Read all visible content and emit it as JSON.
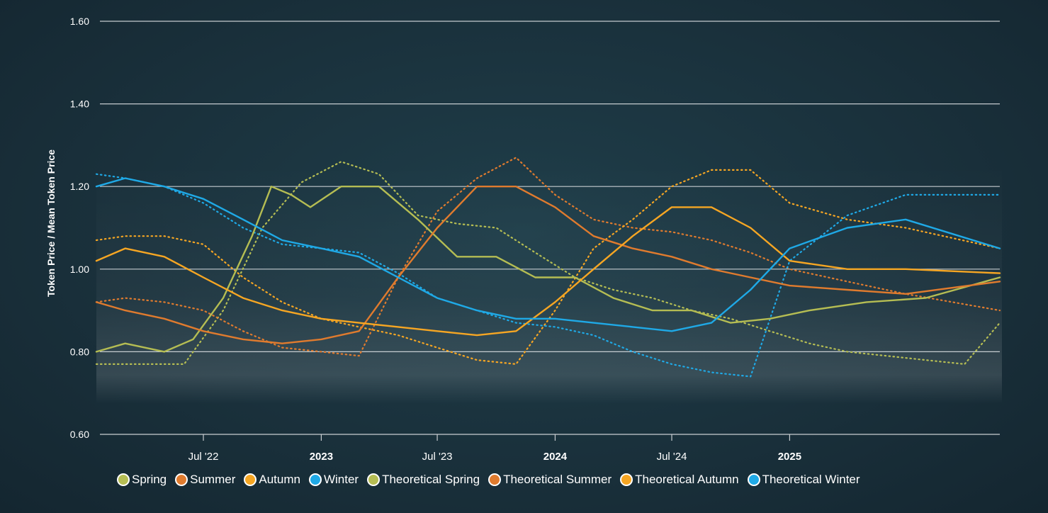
{
  "chart_data": {
    "type": "line",
    "title": "",
    "xlabel": "",
    "ylabel": "Token Price / Mean Token Price",
    "ylim": [
      0.6,
      1.6
    ],
    "yticks": [
      "0.60",
      "0.80",
      "1.00",
      "1.20",
      "1.40",
      "1.60"
    ],
    "xlim": [
      "2022-01-15",
      "2025-11-25"
    ],
    "xticks": [
      {
        "date": "2022-07-01",
        "label": "Jul '22",
        "bold": false
      },
      {
        "date": "2023-01-01",
        "label": "2023",
        "bold": true
      },
      {
        "date": "2023-07-01",
        "label": "Jul '23",
        "bold": false
      },
      {
        "date": "2024-01-01",
        "label": "2024",
        "bold": true
      },
      {
        "date": "2024-07-01",
        "label": "Jul '24",
        "bold": false
      },
      {
        "date": "2025-01-01",
        "label": "2025",
        "bold": true
      }
    ],
    "grid": true,
    "legend_position": "bottom",
    "series": [
      {
        "name": "Spring",
        "color": "#b5bd53",
        "style": "solid",
        "x": [
          "2022-01-15",
          "2022-03-01",
          "2022-05-01",
          "2022-06-15",
          "2022-08-01",
          "2022-09-15",
          "2022-10-15",
          "2022-11-15",
          "2022-12-15",
          "2023-02-01",
          "2023-04-01",
          "2023-06-01",
          "2023-08-01",
          "2023-10-01",
          "2023-12-01",
          "2024-02-01",
          "2024-04-01",
          "2024-06-01",
          "2024-08-01",
          "2024-10-01",
          "2024-12-01",
          "2025-02-01",
          "2025-05-01",
          "2025-08-01",
          "2025-11-25"
        ],
        "y": [
          0.8,
          0.82,
          0.8,
          0.83,
          0.93,
          1.08,
          1.2,
          1.18,
          1.15,
          1.2,
          1.2,
          1.12,
          1.03,
          1.03,
          0.98,
          0.98,
          0.93,
          0.9,
          0.9,
          0.87,
          0.88,
          0.9,
          0.92,
          0.93,
          0.98
        ]
      },
      {
        "name": "Summer",
        "color": "#e07b2e",
        "style": "solid",
        "x": [
          "2022-01-15",
          "2022-03-01",
          "2022-05-01",
          "2022-07-01",
          "2022-09-01",
          "2022-11-01",
          "2023-01-01",
          "2023-03-01",
          "2023-05-01",
          "2023-07-01",
          "2023-09-01",
          "2023-11-01",
          "2024-01-01",
          "2024-03-01",
          "2024-05-01",
          "2024-07-01",
          "2024-09-01",
          "2024-11-01",
          "2025-01-01",
          "2025-04-01",
          "2025-07-01",
          "2025-11-25"
        ],
        "y": [
          0.92,
          0.9,
          0.88,
          0.85,
          0.83,
          0.82,
          0.83,
          0.85,
          0.98,
          1.1,
          1.2,
          1.2,
          1.15,
          1.08,
          1.05,
          1.03,
          1.0,
          0.98,
          0.96,
          0.95,
          0.94,
          0.97
        ]
      },
      {
        "name": "Autumn",
        "color": "#f6a623",
        "style": "solid",
        "x": [
          "2022-01-15",
          "2022-03-01",
          "2022-05-01",
          "2022-07-01",
          "2022-09-01",
          "2022-11-01",
          "2023-01-01",
          "2023-03-01",
          "2023-05-01",
          "2023-07-01",
          "2023-09-01",
          "2023-11-01",
          "2024-01-01",
          "2024-03-01",
          "2024-05-01",
          "2024-07-01",
          "2024-09-01",
          "2024-11-01",
          "2025-01-01",
          "2025-04-01",
          "2025-07-01",
          "2025-11-25"
        ],
        "y": [
          1.02,
          1.05,
          1.03,
          0.98,
          0.93,
          0.9,
          0.88,
          0.87,
          0.86,
          0.85,
          0.84,
          0.85,
          0.92,
          1.0,
          1.08,
          1.15,
          1.15,
          1.1,
          1.02,
          1.0,
          1.0,
          0.99
        ]
      },
      {
        "name": "Winter",
        "color": "#1fa9e6",
        "style": "solid",
        "x": [
          "2022-01-15",
          "2022-03-01",
          "2022-05-01",
          "2022-07-01",
          "2022-09-01",
          "2022-11-01",
          "2023-01-01",
          "2023-03-01",
          "2023-05-01",
          "2023-07-01",
          "2023-09-01",
          "2023-11-01",
          "2024-01-01",
          "2024-03-01",
          "2024-05-01",
          "2024-07-01",
          "2024-09-01",
          "2024-11-01",
          "2025-01-01",
          "2025-04-01",
          "2025-07-01",
          "2025-11-25"
        ],
        "y": [
          1.2,
          1.22,
          1.2,
          1.17,
          1.12,
          1.07,
          1.05,
          1.03,
          0.98,
          0.93,
          0.9,
          0.88,
          0.88,
          0.87,
          0.86,
          0.85,
          0.87,
          0.95,
          1.05,
          1.1,
          1.12,
          1.05
        ]
      },
      {
        "name": "Theoretical Spring",
        "color": "#b5bd53",
        "style": "dotted",
        "x": [
          "2022-01-15",
          "2022-02-01",
          "2022-04-01",
          "2022-06-01",
          "2022-08-01",
          "2022-10-01",
          "2022-12-01",
          "2023-02-01",
          "2023-04-01",
          "2023-06-01",
          "2023-08-01",
          "2023-10-01",
          "2023-12-01",
          "2024-02-01",
          "2024-04-01",
          "2024-06-01",
          "2024-08-01",
          "2024-10-01",
          "2024-12-01",
          "2025-02-01",
          "2025-04-01",
          "2025-06-01",
          "2025-08-01",
          "2025-10-01",
          "2025-11-25"
        ],
        "y": [
          0.77,
          0.77,
          0.77,
          0.77,
          0.9,
          1.1,
          1.21,
          1.26,
          1.23,
          1.13,
          1.11,
          1.1,
          1.04,
          0.98,
          0.95,
          0.93,
          0.9,
          0.88,
          0.85,
          0.82,
          0.8,
          0.79,
          0.78,
          0.77,
          0.87
        ]
      },
      {
        "name": "Theoretical Summer",
        "color": "#e07b2e",
        "style": "dotted",
        "x": [
          "2022-01-15",
          "2022-03-01",
          "2022-05-01",
          "2022-07-01",
          "2022-09-01",
          "2022-11-01",
          "2023-01-01",
          "2023-03-01",
          "2023-05-01",
          "2023-07-01",
          "2023-09-01",
          "2023-11-01",
          "2024-01-01",
          "2024-03-01",
          "2024-05-01",
          "2024-07-01",
          "2024-09-01",
          "2024-11-01",
          "2025-01-01",
          "2025-04-01",
          "2025-07-01",
          "2025-11-25"
        ],
        "y": [
          0.92,
          0.93,
          0.92,
          0.9,
          0.85,
          0.81,
          0.8,
          0.79,
          0.98,
          1.14,
          1.22,
          1.27,
          1.18,
          1.12,
          1.1,
          1.09,
          1.07,
          1.04,
          1.0,
          0.97,
          0.94,
          0.9
        ]
      },
      {
        "name": "Theoretical Autumn",
        "color": "#f6a623",
        "style": "dotted",
        "x": [
          "2022-01-15",
          "2022-03-01",
          "2022-05-01",
          "2022-07-01",
          "2022-09-01",
          "2022-11-01",
          "2023-01-01",
          "2023-03-01",
          "2023-05-01",
          "2023-07-01",
          "2023-09-01",
          "2023-11-01",
          "2024-01-01",
          "2024-03-01",
          "2024-05-01",
          "2024-07-01",
          "2024-09-01",
          "2024-11-01",
          "2025-01-01",
          "2025-04-01",
          "2025-07-01",
          "2025-11-25"
        ],
        "y": [
          1.07,
          1.08,
          1.08,
          1.06,
          0.98,
          0.92,
          0.88,
          0.86,
          0.84,
          0.81,
          0.78,
          0.77,
          0.9,
          1.05,
          1.12,
          1.2,
          1.24,
          1.24,
          1.16,
          1.12,
          1.1,
          1.05
        ]
      },
      {
        "name": "Theoretical Winter",
        "color": "#1fa9e6",
        "style": "dotted",
        "x": [
          "2022-01-15",
          "2022-03-01",
          "2022-05-01",
          "2022-07-01",
          "2022-09-01",
          "2022-11-01",
          "2023-01-01",
          "2023-03-01",
          "2023-05-01",
          "2023-07-01",
          "2023-09-01",
          "2023-11-01",
          "2024-01-01",
          "2024-03-01",
          "2024-05-01",
          "2024-07-01",
          "2024-09-01",
          "2024-11-01",
          "2025-01-01",
          "2025-04-01",
          "2025-07-01",
          "2025-11-25"
        ],
        "y": [
          1.23,
          1.22,
          1.2,
          1.16,
          1.1,
          1.06,
          1.05,
          1.04,
          0.99,
          0.93,
          0.9,
          0.87,
          0.86,
          0.84,
          0.8,
          0.77,
          0.75,
          0.74,
          1.02,
          1.13,
          1.18,
          1.18
        ]
      }
    ]
  }
}
